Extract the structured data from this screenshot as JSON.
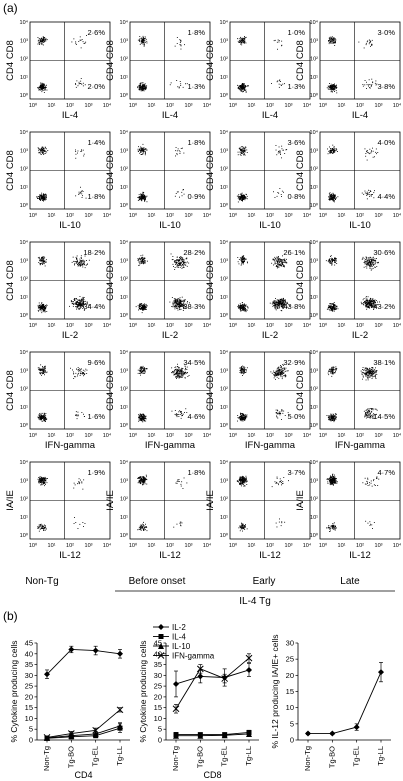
{
  "panel_a_label": "(a)",
  "panel_b_label": "(b)",
  "flow": {
    "rows": [
      {
        "xlabel": "IL-4",
        "ylabel": "CD4 CD8",
        "upper": [
          "2·6%",
          "1·8%",
          "1·0%",
          "3·0%"
        ],
        "lower": [
          "2·0%",
          "1·3%",
          "1·3%",
          "3·8%"
        ]
      },
      {
        "xlabel": "IL-10",
        "ylabel": "CD4 CD8",
        "upper": [
          "1·4%",
          "1·8%",
          "3·6%",
          "4·0%"
        ],
        "lower": [
          "1·8%",
          "0·9%",
          "0·8%",
          "4·4%"
        ]
      },
      {
        "xlabel": "IL-2",
        "ylabel": "CD4 CD8",
        "upper": [
          "18·2%",
          "28·2%",
          "26·1%",
          "30·6%"
        ],
        "lower": [
          "34·4%",
          "38·3%",
          "43·8%",
          "43·2%"
        ]
      },
      {
        "xlabel": "IFN-gamma",
        "ylabel": "CD4 CD8",
        "upper": [
          "9·6%",
          "34·5%",
          "32·9%",
          "38·1%"
        ],
        "lower": [
          "1·6%",
          "4·6%",
          "5·0%",
          "14·5%"
        ]
      },
      {
        "xlabel": "IL-12",
        "ylabel": "IA/IE",
        "upper": [
          "1·9%",
          "1·8%",
          "3·7%",
          "4·7%"
        ],
        "lower": [
          "",
          "",
          "",
          ""
        ]
      }
    ],
    "tick_labels": [
      "10⁰",
      "10¹",
      "10²",
      "10³",
      "10⁴"
    ],
    "columns": [
      "Non-Tg",
      "Before onset",
      "Early",
      "Late"
    ],
    "group_label": "IL-4 Tg"
  },
  "chart_data": [
    {
      "type": "line",
      "xlabel": "CD4",
      "ylabel": "% Cytokine producing cells",
      "categories": [
        "Non-Tg",
        "Tg-BO",
        "Tg-EL",
        "Tg-LL"
      ],
      "ylim": [
        0,
        45
      ],
      "yticks": [
        0,
        5,
        10,
        15,
        20,
        25,
        30,
        35,
        40,
        45
      ],
      "series": [
        {
          "name": "IL-2",
          "marker": "diamond",
          "values": [
            30.5,
            42,
            41.5,
            40
          ],
          "errors": [
            2,
            1.5,
            2,
            2
          ]
        },
        {
          "name": "IL-4",
          "marker": "square",
          "values": [
            0.8,
            1.5,
            2,
            5.5
          ],
          "errors": [
            0.5,
            0.8,
            0.6,
            2
          ]
        },
        {
          "name": "IL-10",
          "marker": "triangle",
          "values": [
            1,
            2,
            2.8,
            6.5
          ],
          "errors": [
            0.5,
            1,
            1,
            1.5
          ]
        },
        {
          "name": "IFN-gamma",
          "marker": "x",
          "values": [
            1.2,
            3,
            4.5,
            14
          ],
          "errors": [
            0.5,
            1,
            1,
            1
          ]
        }
      ]
    },
    {
      "type": "line",
      "xlabel": "CD8",
      "ylabel": "% Cytokine producing cells",
      "categories": [
        "Non-Tg",
        "Tg-BO",
        "Tg-EL",
        "Tg-LL"
      ],
      "ylim": [
        0,
        45
      ],
      "yticks": [
        0,
        5,
        10,
        15,
        20,
        25,
        30,
        35,
        40,
        45
      ],
      "legend": "top-left",
      "series": [
        {
          "name": "IL-2",
          "marker": "diamond",
          "values": [
            26,
            29.5,
            29,
            32.5
          ],
          "errors": [
            6,
            3,
            4,
            3
          ]
        },
        {
          "name": "IL-4",
          "marker": "square",
          "values": [
            2.5,
            2.5,
            2.5,
            3.5
          ],
          "errors": [
            1,
            0.5,
            0.5,
            1
          ]
        },
        {
          "name": "IL-10",
          "marker": "triangle",
          "values": [
            2,
            2,
            2.2,
            2.8
          ],
          "errors": [
            0.5,
            0.5,
            0.5,
            0.6
          ]
        },
        {
          "name": "IFN-gamma",
          "marker": "x",
          "values": [
            14.5,
            33,
            28.5,
            38
          ],
          "errors": [
            2,
            2,
            2,
            2
          ]
        }
      ]
    },
    {
      "type": "line",
      "xlabel": "",
      "ylabel": "% IL-12 producing IA/IE+ cells",
      "categories": [
        "Non-Tg",
        "Tg-BO",
        "Tg-EL",
        "Tg-LL"
      ],
      "ylim": [
        0,
        30
      ],
      "yticks": [
        0,
        5,
        10,
        15,
        20,
        25,
        30
      ],
      "series": [
        {
          "name": "IL-12",
          "marker": "diamond",
          "values": [
            2,
            2,
            4,
            21
          ],
          "errors": [
            0.3,
            0.3,
            1,
            3
          ]
        }
      ]
    }
  ]
}
